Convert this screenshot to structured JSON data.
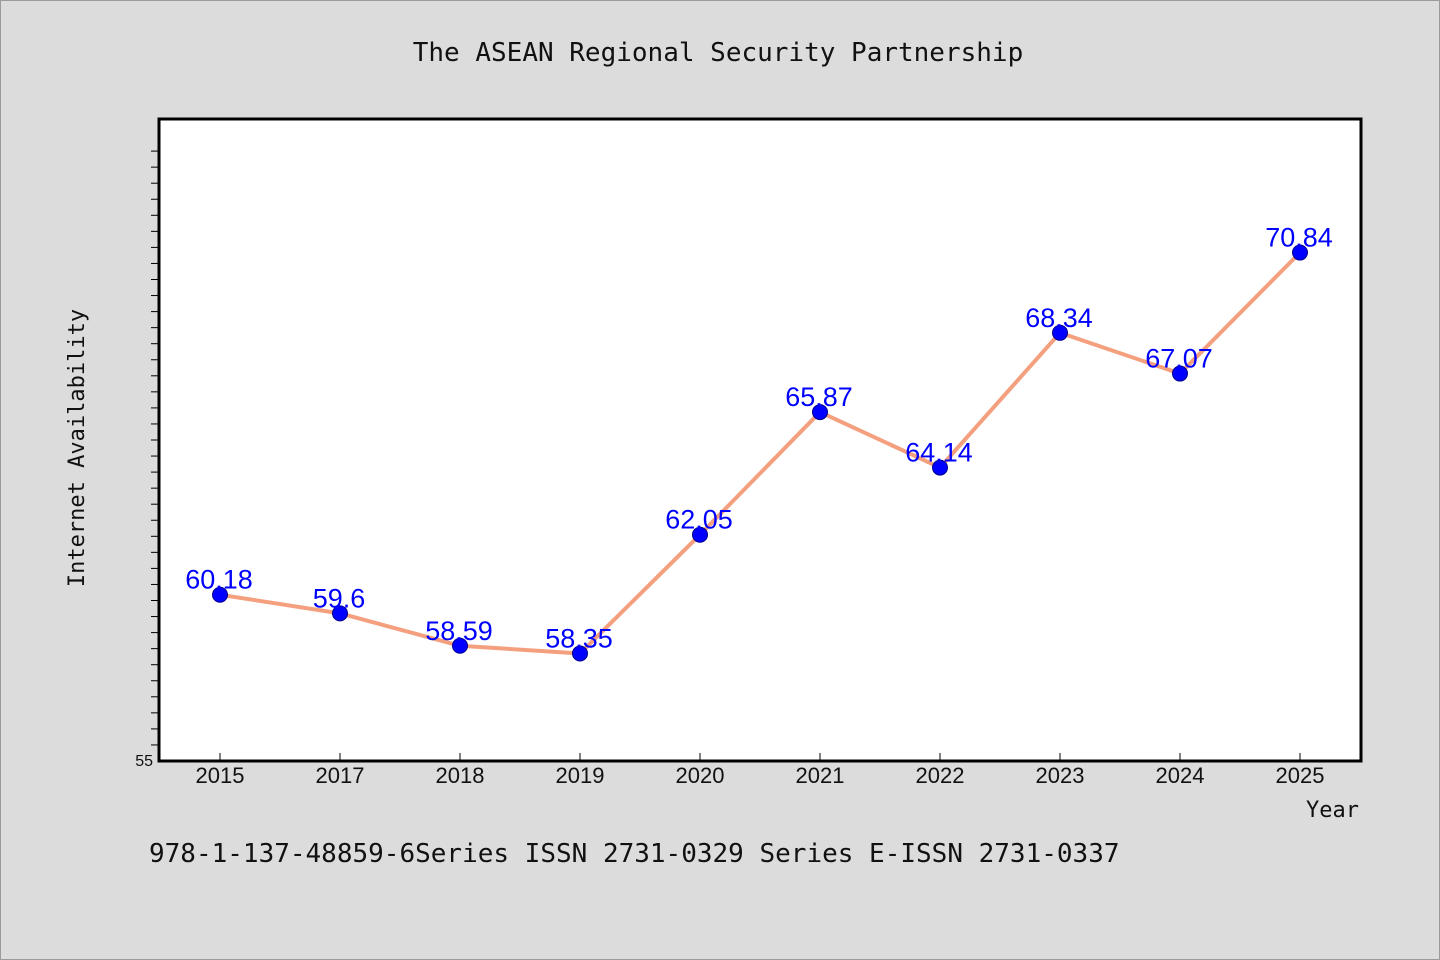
{
  "chart_data": {
    "type": "line",
    "title": "The ASEAN Regional Security Partnership",
    "xlabel": "Year",
    "ylabel": "Internet Availability",
    "categories": [
      "2015",
      "2017",
      "2018",
      "2019",
      "2020",
      "2021",
      "2022",
      "2023",
      "2024",
      "2025"
    ],
    "series": [
      {
        "values": [
          60.18,
          59.6,
          58.59,
          58.35,
          62.05,
          65.87,
          64.14,
          68.34,
          67.07,
          70.84
        ],
        "data_labels": [
          "60.18",
          "59.6",
          "58.59",
          "58.35",
          "62.05",
          "65.87",
          "64.14",
          "68.34",
          "67.07",
          "70.84"
        ],
        "line_color": "#f4a07f",
        "marker_color": "#0000ff"
      }
    ],
    "ylim": [
      55,
      75
    ],
    "y_min_tick_label": "55",
    "grid": false,
    "legend": "none"
  },
  "footer": {
    "text": "978-1-137-48859-6Series ISSN 2731-0329 Series E-ISSN 2731-0337"
  },
  "colors": {
    "background": "#dcdcdc",
    "plot_background": "#ffffff",
    "line": "#f4a07f",
    "marker": "#0000ff",
    "data_label": "#0000ff"
  }
}
